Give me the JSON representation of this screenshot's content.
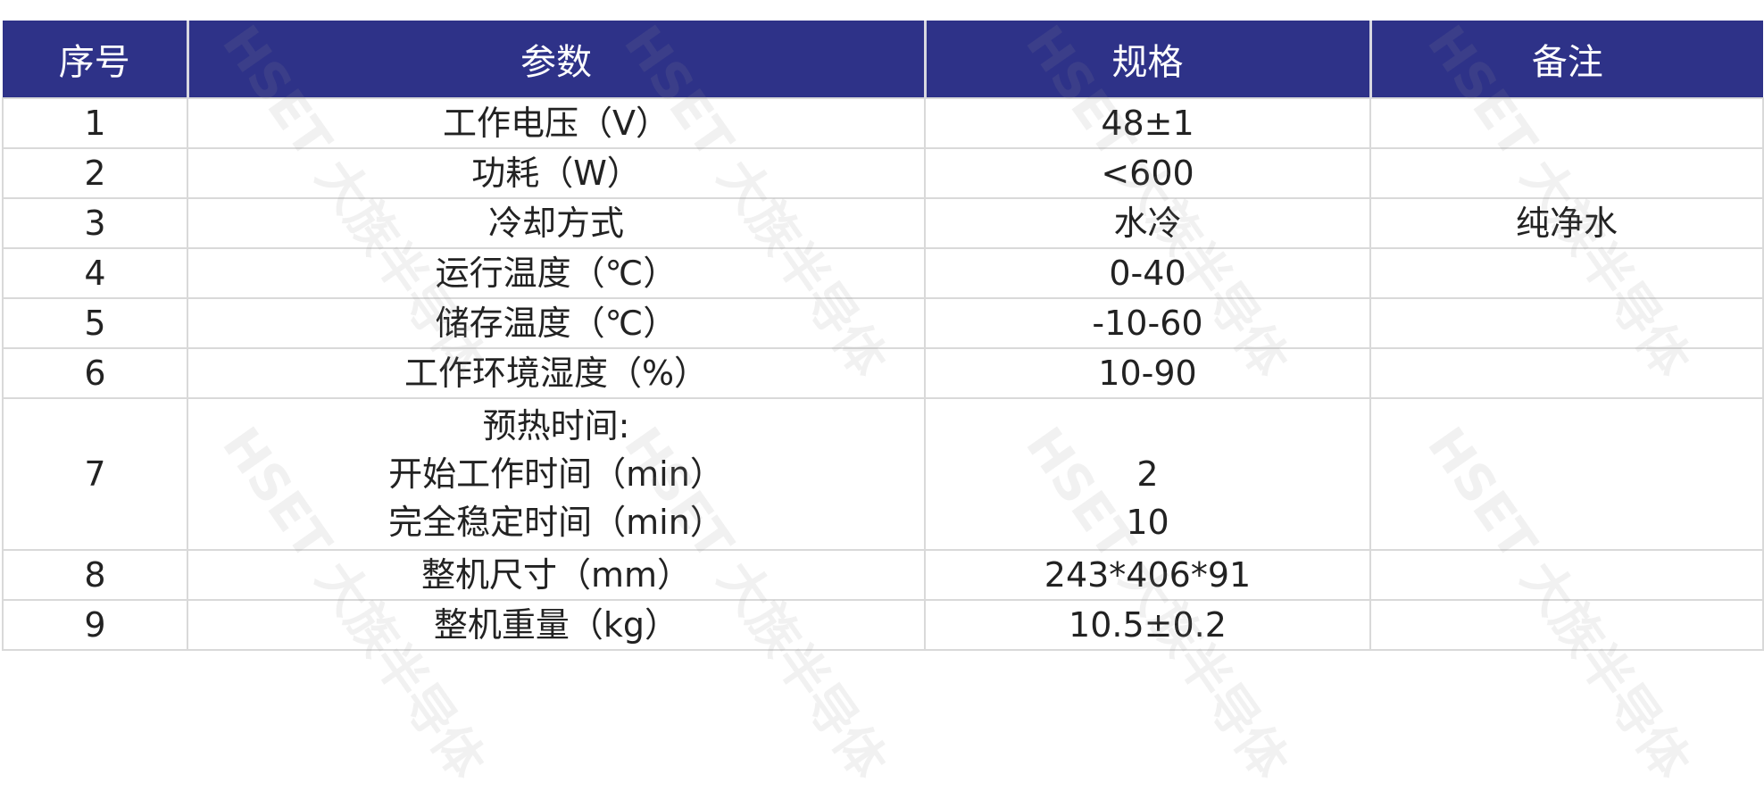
{
  "watermark": "HSET 大族半导体",
  "colors": {
    "header_bg": "#2e3288",
    "header_text": "#ffffff",
    "grid": "#d9d9d9"
  },
  "headers": [
    "序号",
    "参数",
    "规格",
    "备注"
  ],
  "rows": [
    {
      "no": "1",
      "param": "工作电压（V）",
      "spec": "48±1",
      "note": ""
    },
    {
      "no": "2",
      "param": "功耗（W）",
      "spec": "<600",
      "note": ""
    },
    {
      "no": "3",
      "param": "冷却方式",
      "spec": "水冷",
      "note": "纯净水"
    },
    {
      "no": "4",
      "param": "运行温度（℃）",
      "spec": "0-40",
      "note": ""
    },
    {
      "no": "5",
      "param": "储存温度（℃）",
      "spec": "-10-60",
      "note": ""
    },
    {
      "no": "6",
      "param": "工作环境湿度（%）",
      "spec": "10-90",
      "note": ""
    },
    {
      "no": "7",
      "param_lines": [
        "预热时间:",
        "开始工作时间（min）",
        "完全稳定时间（min）"
      ],
      "spec_lines": [
        "",
        "2",
        "10"
      ],
      "note": ""
    },
    {
      "no": "8",
      "param": "整机尺寸（mm）",
      "spec": "243*406*91",
      "note": ""
    },
    {
      "no": "9",
      "param": "整机重量（kg）",
      "spec": "10.5±0.2",
      "note": ""
    }
  ]
}
